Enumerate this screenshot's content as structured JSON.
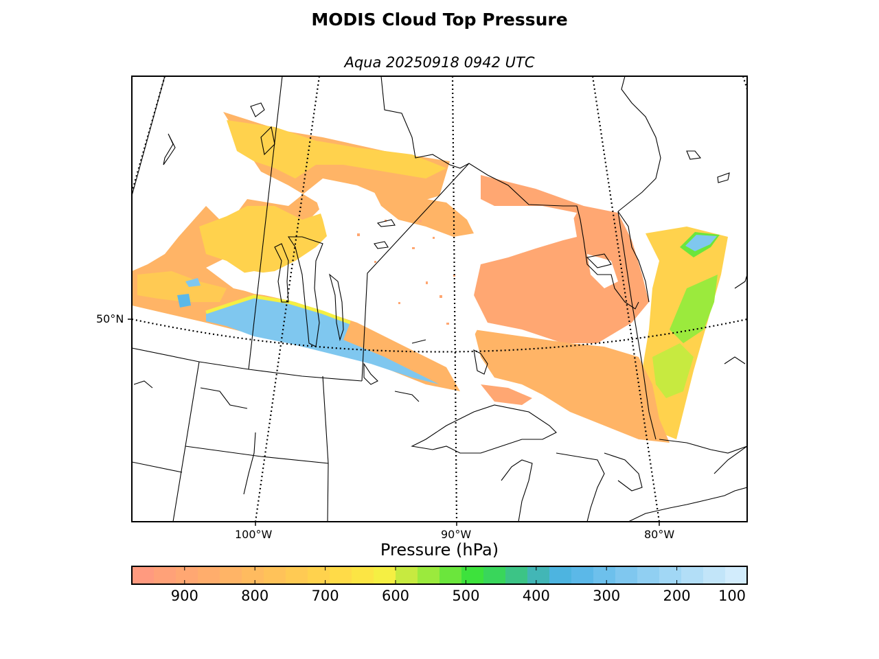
{
  "title": "MODIS Cloud Top Pressure",
  "subtitle": "Aqua 20250918 0942 UTC",
  "map": {
    "lat_labels": [
      {
        "label": "50°N"
      }
    ],
    "lon_labels": [
      {
        "label": "100°W"
      },
      {
        "label": "90°W"
      },
      {
        "label": "80°W"
      }
    ],
    "colors": {
      "land": "#ffffff",
      "coast": "#000000",
      "gridline": "#000000"
    }
  },
  "colorbar": {
    "label": "Pressure (hPa)",
    "range": [
      975,
      100
    ],
    "ticks": [
      "900",
      "800",
      "700",
      "600",
      "500",
      "400",
      "300",
      "200",
      "100"
    ],
    "tick_values": [
      900,
      800,
      700,
      600,
      500,
      400,
      300,
      200,
      100
    ],
    "colors": [
      "#ff9a7f",
      "#ffa178",
      "#ffa772",
      "#ffad6c",
      "#ffb466",
      "#ffbb5f",
      "#ffc259",
      "#ffca53",
      "#ffd24d",
      "#ffdb48",
      "#fce544",
      "#f5ef43",
      "#c7ea40",
      "#9bea3d",
      "#6be63c",
      "#3de23c",
      "#39d65b",
      "#3cc486",
      "#42b6b6",
      "#4db4e0",
      "#5bb8e8",
      "#6dc0ec",
      "#7fc7ef",
      "#90cff2",
      "#a1d7f5",
      "#b2def7",
      "#c2e5f9",
      "#d2ecfc"
    ]
  },
  "cloud_field": {
    "dominant_pressure_hPa": [
      850,
      700
    ],
    "high_cloud_band_hPa": [
      250,
      300
    ],
    "legend_colors": {
      "low": "#ffa772",
      "mid": "#ffd24d",
      "high": "#7fc7ef",
      "green": "#6be63c"
    }
  }
}
